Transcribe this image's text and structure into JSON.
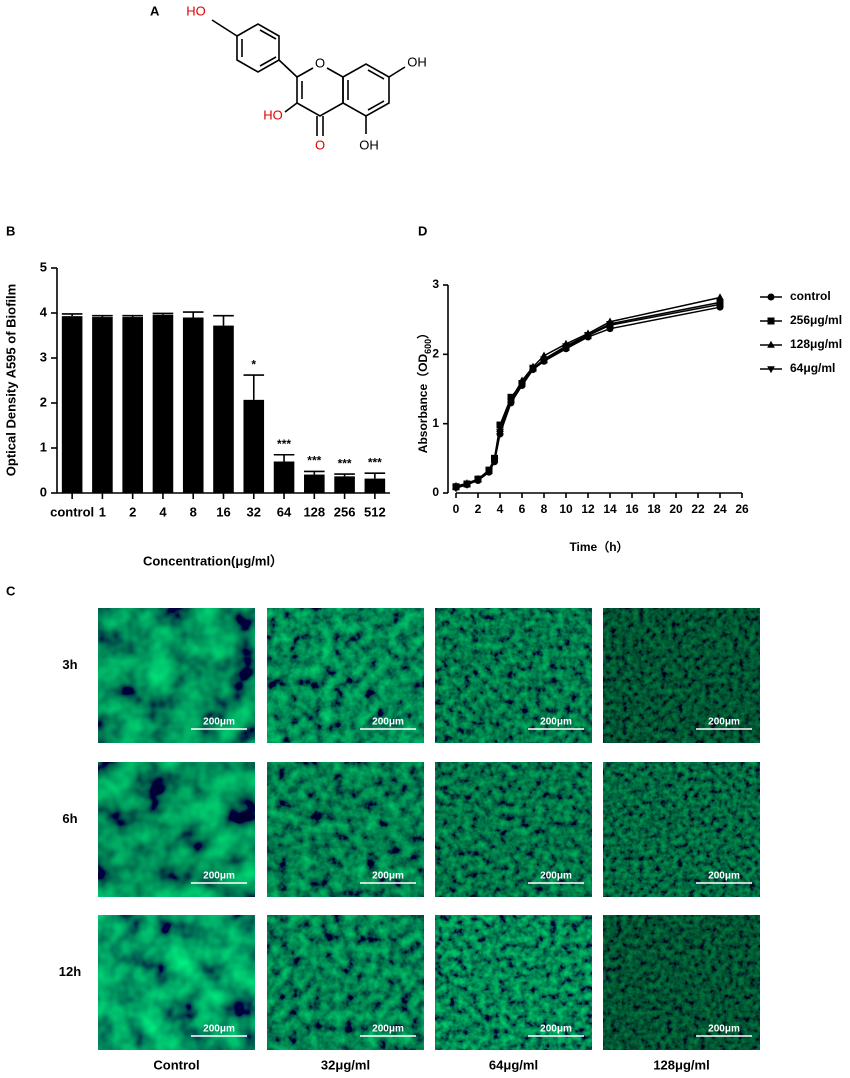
{
  "panels": {
    "a": "A",
    "b": "B",
    "c": "C",
    "d": "D"
  },
  "structure": {
    "hydroxyl_4p": "HO",
    "hydroxyl_3": "HO",
    "ring_oxygen": "O",
    "hydroxyl_7": "OH",
    "hydroxyl_5": "OH",
    "carbonyl": "O"
  },
  "chart_data": [
    {
      "type": "bar",
      "categories": [
        "control",
        "1",
        "2",
        "4",
        "8",
        "16",
        "32",
        "64",
        "128",
        "256",
        "512"
      ],
      "values": [
        3.93,
        3.91,
        3.91,
        3.96,
        3.9,
        3.72,
        2.07,
        0.7,
        0.41,
        0.37,
        0.32
      ],
      "errors": [
        0.05,
        0.03,
        0.03,
        0.03,
        0.12,
        0.22,
        0.55,
        0.15,
        0.07,
        0.05,
        0.12
      ],
      "significance": [
        null,
        null,
        null,
        null,
        null,
        null,
        "*",
        "***",
        "***",
        "***",
        "***"
      ],
      "color": "#000000",
      "ylim": [
        0,
        5
      ],
      "yticks": [
        0,
        1,
        2,
        3,
        4,
        5
      ],
      "ylabel": "Optical Density A595 of Biofilm",
      "xlabel": "Concentration(μg/ml）"
    },
    {
      "type": "line",
      "x": [
        0,
        1,
        2,
        3,
        3.5,
        4,
        5,
        6,
        7,
        8,
        10,
        12,
        14,
        24
      ],
      "series": [
        {
          "name": "control",
          "color": "#000000",
          "marker": "circle",
          "values": [
            0.08,
            0.12,
            0.18,
            0.3,
            0.45,
            0.85,
            1.3,
            1.55,
            1.78,
            1.9,
            2.08,
            2.25,
            2.37,
            2.68
          ]
        },
        {
          "name": "256μg/ml",
          "color": "#000000",
          "marker": "square",
          "values": [
            0.09,
            0.13,
            0.2,
            0.33,
            0.5,
            0.98,
            1.38,
            1.58,
            1.8,
            1.92,
            2.1,
            2.27,
            2.42,
            2.72
          ]
        },
        {
          "name": "128μg/ml",
          "color": "#000000",
          "marker": "triangle-up",
          "values": [
            0.1,
            0.14,
            0.2,
            0.32,
            0.48,
            0.92,
            1.35,
            1.62,
            1.82,
            1.98,
            2.15,
            2.3,
            2.47,
            2.82
          ]
        },
        {
          "name": "64μg/ml",
          "color": "#000000",
          "marker": "triangle-down",
          "values": [
            0.07,
            0.12,
            0.19,
            0.31,
            0.46,
            0.88,
            1.32,
            1.57,
            1.79,
            1.93,
            2.12,
            2.28,
            2.44,
            2.75
          ]
        }
      ],
      "xlim": [
        0,
        26
      ],
      "xticks": [
        0,
        2,
        4,
        6,
        8,
        10,
        12,
        14,
        16,
        18,
        20,
        22,
        24,
        26
      ],
      "ylim": [
        0,
        3
      ],
      "yticks": [
        0,
        1,
        2,
        3
      ],
      "ylabel": "Absorbance（OD",
      "ylabel_subscript": "600",
      "ylabel_end": "）",
      "xlabel": "Time（h）",
      "legend": "right"
    }
  ],
  "micrographs": {
    "rows": [
      "3h",
      "6h",
      "12h"
    ],
    "columns": [
      "Control",
      "32μg/ml",
      "64μg/ml",
      "128μg/ml"
    ],
    "scale_bar": "200μm"
  }
}
